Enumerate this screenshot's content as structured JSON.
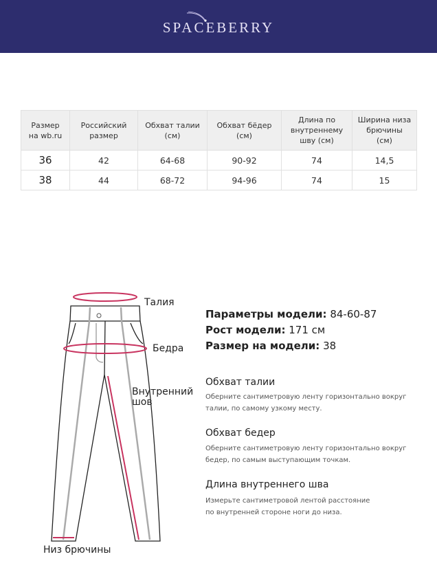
{
  "brand": "SPACEBERRY",
  "colors": {
    "header_bg": "#2d2d6e",
    "accent": "#c8335f"
  },
  "table": {
    "headers": [
      "Размер\nна wb.ru",
      "Российский\nразмер",
      "Обхват талии\n(см)",
      "Обхват бёдер\n(см)",
      "Длина по\nвнутреннему\nшву (см)",
      "Ширина низа\nбрючины\n(см)"
    ],
    "rows": [
      [
        "36",
        "42",
        "64-68",
        "90-92",
        "74",
        "14,5"
      ],
      [
        "38",
        "44",
        "68-72",
        "94-96",
        "74",
        "15"
      ]
    ]
  },
  "diagram": {
    "waist": "Талия",
    "hips": "Бедра",
    "inseam_1": "Внутренний",
    "inseam_2": "шов",
    "hem": "Низ брючины"
  },
  "model": {
    "params_label": "Параметры модели:",
    "params_value": "84-60-87",
    "height_label": "Рост модели:",
    "height_value": "171 см",
    "size_label": "Размер на модели:",
    "size_value": "38"
  },
  "guide": [
    {
      "title": "Обхват талии",
      "line1": "Оберните сантиметровую ленту горизонтально вокруг",
      "line2": "талии, по самому узкому месту."
    },
    {
      "title": "Обхват бедер",
      "line1": "Оберните сантиметровую ленту горизонтально вокруг",
      "line2": "бедер, по самым выступающим точкам."
    },
    {
      "title": "Длина внутреннего шва",
      "line1": "Измерьте сантиметровой лентой расстояние",
      "line2": "по внутренней стороне ноги до низа."
    }
  ]
}
